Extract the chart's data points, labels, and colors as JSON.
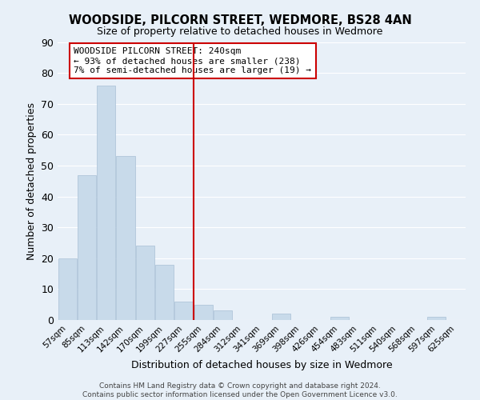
{
  "title": "WOODSIDE, PILCORN STREET, WEDMORE, BS28 4AN",
  "subtitle": "Size of property relative to detached houses in Wedmore",
  "xlabel": "Distribution of detached houses by size in Wedmore",
  "ylabel": "Number of detached properties",
  "bar_color": "#c8daea",
  "bar_edge_color": "#a8c0d6",
  "categories": [
    "57sqm",
    "85sqm",
    "113sqm",
    "142sqm",
    "170sqm",
    "199sqm",
    "227sqm",
    "255sqm",
    "284sqm",
    "312sqm",
    "341sqm",
    "369sqm",
    "398sqm",
    "426sqm",
    "454sqm",
    "483sqm",
    "511sqm",
    "540sqm",
    "568sqm",
    "597sqm",
    "625sqm"
  ],
  "values": [
    20,
    47,
    76,
    53,
    24,
    18,
    6,
    5,
    3,
    0,
    0,
    2,
    0,
    0,
    1,
    0,
    0,
    0,
    0,
    1,
    0
  ],
  "ylim": [
    0,
    90
  ],
  "yticks": [
    0,
    10,
    20,
    30,
    40,
    50,
    60,
    70,
    80,
    90
  ],
  "ref_line_x": 6.5,
  "ref_line_color": "#cc0000",
  "annotation_text": "WOODSIDE PILCORN STREET: 240sqm\n← 93% of detached houses are smaller (238)\n7% of semi-detached houses are larger (19) →",
  "annotation_box_color": "#ffffff",
  "annotation_box_edge": "#cc0000",
  "footer": "Contains HM Land Registry data © Crown copyright and database right 2024.\nContains public sector information licensed under the Open Government Licence v3.0.",
  "background_color": "#e8f0f8",
  "plot_bg_color": "#e8f0f8",
  "grid_color": "#ffffff"
}
